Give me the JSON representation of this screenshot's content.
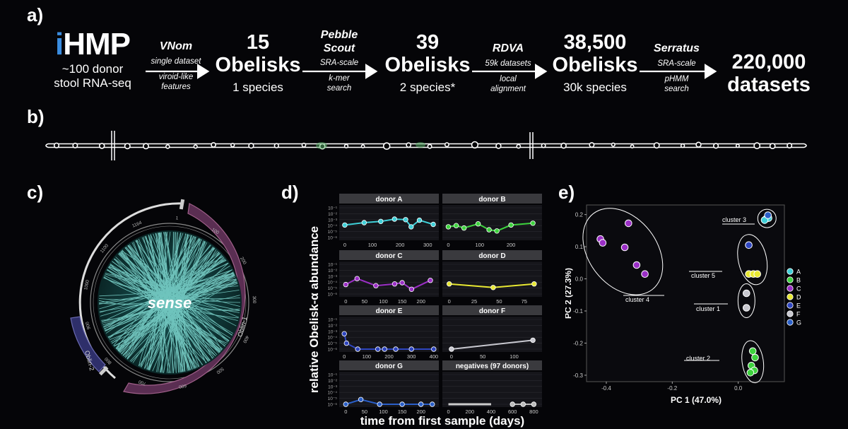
{
  "panels": {
    "a": "a)",
    "b": "b)",
    "c": "c)",
    "d": "d)",
    "e": "e)"
  },
  "pipeline": {
    "start": {
      "title_i": "i",
      "title_rest": "HMP",
      "line1": "~100 donor",
      "line2": "stool RNA-seq"
    },
    "arrows": [
      {
        "title": "VNom",
        "above": "single dataset",
        "below1": "viroid-like",
        "below2": "features"
      },
      {
        "title1": "Pebble",
        "title2": "Scout",
        "above": "SRA-scale",
        "below1": "k-mer",
        "below2": "search"
      },
      {
        "title": "RDVA",
        "above": "59k datasets",
        "below1": "local",
        "below2": "alignment"
      },
      {
        "title": "Serratus",
        "above": "SRA-scale",
        "below1": "pHMM",
        "below2": "search"
      }
    ],
    "stages": [
      {
        "count": "15",
        "label": "Obelisks",
        "sub": "1 species"
      },
      {
        "count": "39",
        "label": "Obelisks",
        "sub": "2 species*"
      },
      {
        "count": "38,500",
        "label": "Obelisks",
        "sub": "30k species"
      },
      {
        "count": "220,000",
        "label": "datasets",
        "sub": ""
      }
    ]
  },
  "circos": {
    "center": "sense",
    "seg1": "Oblin-1",
    "seg2": "Oblin-2",
    "ticks": [
      "1",
      "100",
      "200",
      "300",
      "400",
      "500",
      "600",
      "700",
      "800",
      "900",
      "1000",
      "1100",
      "1164"
    ]
  },
  "chart_data": [
    {
      "type": "line",
      "ylabel": "relative Obelisk-α abundance",
      "xlabel": "time from first sample (days)",
      "ytick_labels": [
        "10⁻¹",
        "10⁻²",
        "10⁻³",
        "10⁻⁴",
        "10⁻⁵",
        "10⁻⁶"
      ],
      "facets": [
        {
          "title": "donor A",
          "color": "#3fd0d8",
          "xticks": [
            0,
            100,
            200,
            300
          ],
          "xlim": [
            -10,
            330
          ],
          "x": [
            0,
            70,
            130,
            180,
            220,
            240,
            270,
            320
          ],
          "y": [
            3.9,
            3.5,
            3.3,
            2.9,
            3.0,
            4.2,
            3.1,
            3.8
          ]
        },
        {
          "title": "donor B",
          "color": "#3ed33e",
          "xticks": [
            0,
            100,
            200
          ],
          "xlim": [
            -10,
            290
          ],
          "x": [
            0,
            25,
            50,
            95,
            130,
            155,
            200,
            270
          ],
          "y": [
            4.2,
            4.0,
            4.4,
            3.7,
            4.7,
            4.9,
            3.9,
            3.6
          ]
        },
        {
          "title": "donor C",
          "color": "#9b2fc6",
          "xticks": [
            0,
            50,
            100,
            150,
            200
          ],
          "xlim": [
            -10,
            240
          ],
          "x": [
            0,
            30,
            80,
            130,
            150,
            175,
            225
          ],
          "y": [
            4.4,
            3.4,
            4.6,
            4.3,
            4.1,
            5.2,
            3.7
          ]
        },
        {
          "title": "donor D",
          "color": "#e8e832",
          "xticks": [
            0,
            25,
            50,
            75
          ],
          "xlim": [
            -4,
            90
          ],
          "x": [
            0,
            44,
            85
          ],
          "y": [
            4.3,
            4.9,
            4.3
          ]
        },
        {
          "title": "donor E",
          "color": "#2e45c0",
          "xticks": [
            0,
            100,
            200,
            300,
            400
          ],
          "xlim": [
            -10,
            410
          ],
          "x": [
            0,
            10,
            60,
            150,
            180,
            230,
            300,
            400
          ],
          "y": [
            3.4,
            5.0,
            6.0,
            6.0,
            6.0,
            6.0,
            6.0,
            6.0
          ]
        },
        {
          "title": "donor F",
          "color": "#c8c8d0",
          "xticks": [
            0,
            50,
            100
          ],
          "xlim": [
            -10,
            140
          ],
          "x": [
            0,
            130
          ],
          "y": [
            6.0,
            4.5
          ]
        },
        {
          "title": "donor G",
          "color": "#2a5fc8",
          "xticks": [
            0,
            50,
            100,
            150,
            200
          ],
          "xlim": [
            -10,
            240
          ],
          "x": [
            0,
            40,
            90,
            150,
            200,
            230
          ],
          "y": [
            6.0,
            5.2,
            6.0,
            6.0,
            6.0,
            6.0
          ]
        },
        {
          "title": "negatives (97 donors)",
          "color": "#bbbbbb",
          "xticks": [
            0,
            200,
            400,
            600,
            800
          ],
          "xlim": [
            -30,
            850
          ],
          "x": [
            600,
            700,
            800
          ],
          "y": [
            6.0,
            6.0,
            6.0
          ]
        }
      ]
    },
    {
      "type": "scatter",
      "xlabel": "PC 1 (47.0%)",
      "ylabel": "PC 2 (27.3%)",
      "xlim": [
        -0.46,
        0.14
      ],
      "ylim": [
        -0.32,
        0.23
      ],
      "xticks": [
        {
          "v": -0.4,
          "l": "-0.4"
        },
        {
          "v": -0.2,
          "l": "-0.2"
        },
        {
          "v": 0.0,
          "l": "0.0"
        }
      ],
      "yticks": [
        {
          "v": 0.2,
          "l": "0.2"
        },
        {
          "v": 0.1,
          "l": "0.1"
        },
        {
          "v": 0.0,
          "l": "0.0"
        },
        {
          "v": -0.1,
          "l": "-0.1"
        },
        {
          "v": -0.2,
          "l": "-0.2"
        },
        {
          "v": -0.3,
          "l": "-0.3"
        }
      ],
      "legend": [
        {
          "name": "A",
          "color": "#3fd0d8"
        },
        {
          "name": "B",
          "color": "#3ed33e"
        },
        {
          "name": "C",
          "color": "#9b2fc6"
        },
        {
          "name": "D",
          "color": "#e8e832"
        },
        {
          "name": "E",
          "color": "#2e45c0"
        },
        {
          "name": "F",
          "color": "#c8c8d0"
        },
        {
          "name": "G",
          "color": "#2a5fc8"
        }
      ],
      "points": [
        {
          "x": 0.085,
          "y": 0.187,
          "g": "A"
        },
        {
          "x": 0.092,
          "y": 0.189,
          "g": "A"
        },
        {
          "x": 0.08,
          "y": 0.183,
          "g": "A"
        },
        {
          "x": 0.044,
          "y": -0.225,
          "g": "B"
        },
        {
          "x": 0.051,
          "y": -0.245,
          "g": "B"
        },
        {
          "x": 0.04,
          "y": -0.27,
          "g": "B"
        },
        {
          "x": 0.049,
          "y": -0.285,
          "g": "B"
        },
        {
          "x": 0.037,
          "y": -0.292,
          "g": "B"
        },
        {
          "x": -0.418,
          "y": 0.124,
          "g": "C"
        },
        {
          "x": -0.411,
          "y": 0.112,
          "g": "C"
        },
        {
          "x": -0.333,
          "y": 0.173,
          "g": "C"
        },
        {
          "x": -0.344,
          "y": 0.098,
          "g": "C"
        },
        {
          "x": -0.308,
          "y": 0.043,
          "g": "C"
        },
        {
          "x": -0.283,
          "y": 0.015,
          "g": "C"
        },
        {
          "x": 0.032,
          "y": 0.015,
          "g": "D"
        },
        {
          "x": 0.046,
          "y": 0.015,
          "g": "D"
        },
        {
          "x": 0.058,
          "y": 0.015,
          "g": "D"
        },
        {
          "x": 0.032,
          "y": 0.105,
          "g": "E"
        },
        {
          "x": 0.025,
          "y": -0.045,
          "g": "F"
        },
        {
          "x": 0.025,
          "y": -0.09,
          "g": "F"
        },
        {
          "x": 0.09,
          "y": 0.198,
          "g": "G"
        }
      ],
      "clusters": [
        {
          "label": "cluster 3"
        },
        {
          "label": "cluster 5"
        },
        {
          "label": "cluster 4"
        },
        {
          "label": "cluster 1"
        },
        {
          "label": "cluster 2"
        }
      ]
    }
  ]
}
